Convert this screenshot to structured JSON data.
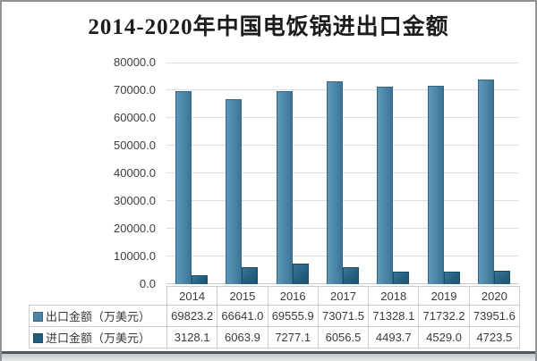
{
  "title": "2014-2020年中国电饭锅进出口金额",
  "colors": {
    "export_bar": "#4a86a8",
    "export_bar_border": "#336689",
    "import_bar": "#245e7e",
    "import_bar_border": "#1b4c69",
    "grid_line": "#dcdfe1",
    "table_border": "#c6ccd1",
    "text": "#3a3a3a",
    "title_text": "#1c1c1c",
    "frame_border": "#8f9396"
  },
  "chart_data": {
    "type": "bar",
    "title": "2014-2020年中国电饭锅进出口金额",
    "categories": [
      "2014",
      "2015",
      "2016",
      "2017",
      "2018",
      "2019",
      "2020"
    ],
    "series": [
      {
        "name": "出口金额（万美元）",
        "values": [
          69823.2,
          66641.0,
          69555.9,
          73071.5,
          71328.1,
          71732.2,
          73951.6
        ],
        "value_labels": [
          "69823.2",
          "66641.0",
          "69555.9",
          "73071.5",
          "71328.1",
          "71732.2",
          "73951.6"
        ],
        "color": "#4a86a8"
      },
      {
        "name": "进口金额（万美元）",
        "values": [
          3128.1,
          6063.9,
          7277.1,
          6056.5,
          4493.7,
          4529.0,
          4723.5
        ],
        "value_labels": [
          "3128.1",
          "6063.9",
          "7277.1",
          "6056.5",
          "4493.7",
          "4529.0",
          "4723.5"
        ],
        "color": "#225d7e"
      }
    ],
    "xlabel": "",
    "ylabel": "",
    "ylim": [
      0,
      80000
    ],
    "ytick_step": 10000,
    "ytick_labels": [
      "0.0",
      "10000.0",
      "20000.0",
      "30000.0",
      "40000.0",
      "50000.0",
      "60000.0",
      "70000.0",
      "80000.0"
    ],
    "grid": true,
    "legend_position": "data-table-left",
    "data_table_shown": true
  }
}
